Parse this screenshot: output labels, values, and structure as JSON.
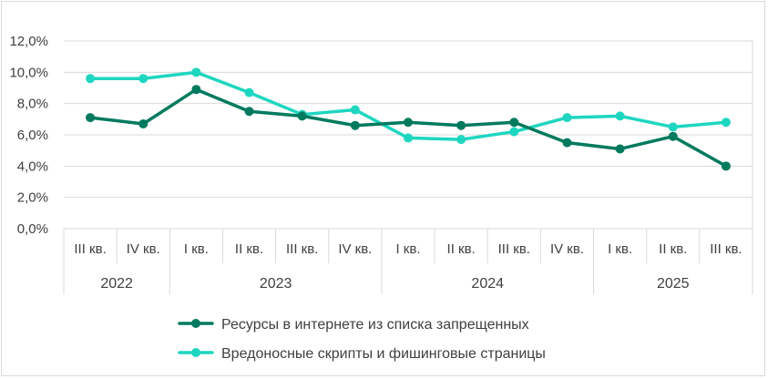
{
  "chart_data": {
    "type": "line",
    "title": "",
    "xlabel": "",
    "ylabel": "",
    "ylim": [
      0,
      12
    ],
    "yticks": [
      "0,0%",
      "2,0%",
      "4,0%",
      "6,0%",
      "8,0%",
      "10,0%",
      "12,0%"
    ],
    "grid": true,
    "legend_position": "bottom",
    "categories": [
      "III кв.",
      "IV кв.",
      "I кв.",
      "II кв.",
      "III кв.",
      "IV кв.",
      "I кв.",
      "II кв.",
      "III кв.",
      "IV кв.",
      "I кв.",
      "II кв.",
      "III кв."
    ],
    "year_groups": [
      {
        "label": "2022",
        "count": 2
      },
      {
        "label": "2023",
        "count": 4
      },
      {
        "label": "2024",
        "count": 4
      },
      {
        "label": "2025",
        "count": 3
      }
    ],
    "series": [
      {
        "name": "Ресурсы в интернете из списка запрещенных",
        "color": "#007a5e",
        "values": [
          7.1,
          6.7,
          8.9,
          7.5,
          7.2,
          6.6,
          6.8,
          6.6,
          6.8,
          5.5,
          5.1,
          5.9,
          4.0
        ]
      },
      {
        "name": "Вредоносные скрипты и фишинговые страницы",
        "color": "#1ed6c0",
        "values": [
          9.6,
          9.6,
          10.0,
          8.7,
          7.3,
          7.6,
          5.8,
          5.7,
          6.2,
          7.1,
          7.2,
          6.5,
          6.8
        ]
      }
    ]
  }
}
